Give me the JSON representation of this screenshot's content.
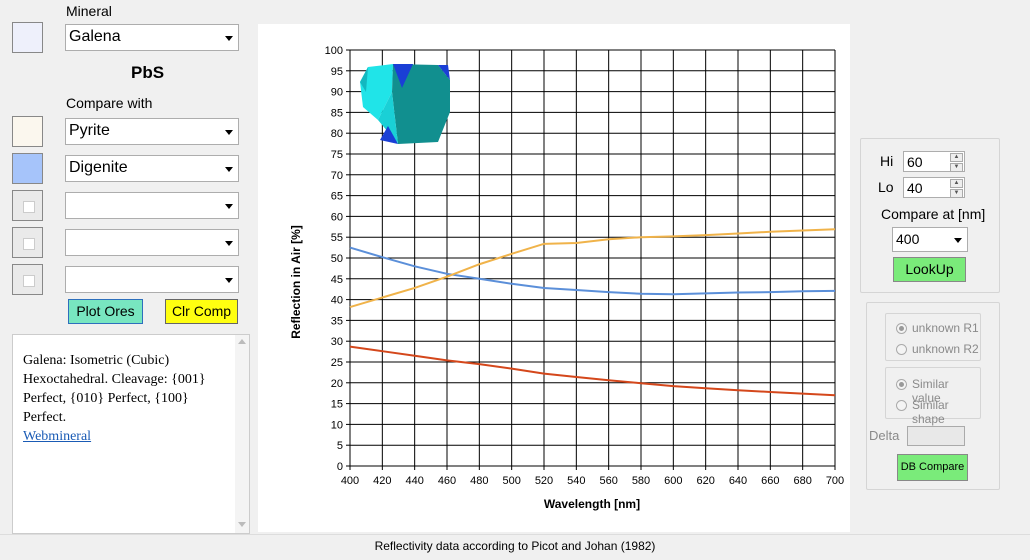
{
  "left": {
    "mineral_label": "Mineral",
    "mineral_value": "Galena",
    "formula": "PbS",
    "compare_label": "Compare with",
    "compare_values": [
      "Pyrite",
      "Digenite",
      "",
      "",
      ""
    ],
    "swatch_colors": [
      "#eef0fb",
      "#fbf7ee",
      "#a6c4fa",
      "",
      "",
      ""
    ],
    "plot_button": "Plot Ores",
    "clear_button": "Clr Comp",
    "description_lines": [
      "Galena: Isometric (Cubic)",
      "Hexoctahedral. Cleavage: {001}",
      "Perfect, {010} Perfect, {100}",
      "Perfect."
    ],
    "link": "Webmineral"
  },
  "right": {
    "hi_label": "Hi",
    "hi_value": "60",
    "lo_label": "Lo",
    "lo_value": "40",
    "compare_at_label": "Compare at [nm]",
    "compare_at_value": "400",
    "lookup_button": "LookUp",
    "unknown_r1": "unknown R1",
    "unknown_r2": "unknown R2",
    "similar_value": "Similar value",
    "similar_shape": "Similar shape",
    "delta_label": "Delta",
    "db_compare_button": "DB Compare"
  },
  "status_text": "Reflectivity data according to Picot and Johan (1982)",
  "chart_data": {
    "type": "line",
    "xlabel": "Wavelength [nm]",
    "ylabel": "Reflection in Air [%]",
    "xlim": [
      400,
      700
    ],
    "ylim": [
      0,
      100
    ],
    "xticks": [
      400,
      420,
      440,
      460,
      480,
      500,
      520,
      540,
      560,
      580,
      600,
      620,
      640,
      660,
      680,
      700
    ],
    "yticks": [
      0,
      5,
      10,
      15,
      20,
      25,
      30,
      35,
      40,
      45,
      50,
      55,
      60,
      65,
      70,
      75,
      80,
      85,
      90,
      95,
      100
    ],
    "grid": true,
    "legend_position": "top-right",
    "series": [
      {
        "name": "Galena",
        "color": "#5b8fd9",
        "x": [
          400,
          420,
          440,
          460,
          480,
          500,
          520,
          540,
          560,
          580,
          600,
          620,
          640,
          660,
          680,
          700
        ],
        "y": [
          52.5,
          50.2,
          48.0,
          46.2,
          45.0,
          43.8,
          42.8,
          42.3,
          41.8,
          41.4,
          41.3,
          41.5,
          41.7,
          41.8,
          42.0,
          42.1
        ]
      },
      {
        "name": "Pyrite",
        "color": "#f0b34a",
        "x": [
          400,
          420,
          440,
          460,
          480,
          500,
          520,
          540,
          560,
          580,
          600,
          620,
          640,
          660,
          680,
          700
        ],
        "y": [
          38.2,
          40.5,
          42.8,
          45.5,
          48.5,
          51.0,
          53.4,
          53.6,
          54.5,
          55.0,
          55.2,
          55.5,
          55.9,
          56.3,
          56.6,
          56.9
        ]
      },
      {
        "name": "Digenite",
        "color": "#d4471b",
        "x": [
          400,
          420,
          440,
          460,
          480,
          500,
          520,
          540,
          560,
          580,
          600,
          620,
          640,
          660,
          680,
          700
        ],
        "y": [
          28.7,
          27.6,
          26.5,
          25.4,
          24.5,
          23.4,
          22.2,
          21.4,
          20.6,
          19.9,
          19.2,
          18.7,
          18.2,
          17.8,
          17.4,
          17.0
        ]
      }
    ]
  }
}
